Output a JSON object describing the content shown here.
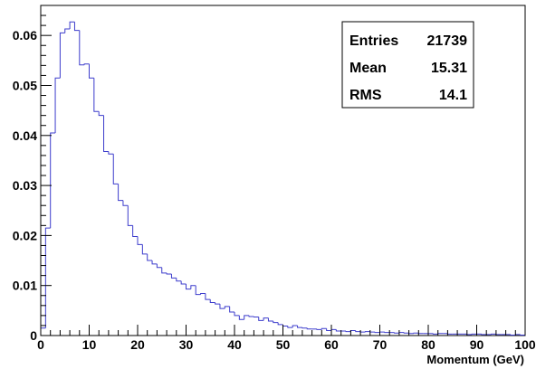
{
  "chart_data": {
    "type": "bar",
    "title": "",
    "xlabel": "Momentum (GeV)",
    "ylabel": "",
    "xlim": [
      0,
      100
    ],
    "ylim": [
      0,
      0.066
    ],
    "grid": false,
    "line_color": "#3c3ccc",
    "bin_width": 1,
    "x_ticks": [
      "0",
      "10",
      "20",
      "30",
      "40",
      "50",
      "60",
      "70",
      "80",
      "90",
      "100"
    ],
    "y_ticks": [
      "0",
      "0.01",
      "0.02",
      "0.03",
      "0.04",
      "0.05",
      "0.06"
    ],
    "y_tick_values": [
      0,
      0.01,
      0.02,
      0.03,
      0.04,
      0.05,
      0.06
    ],
    "values": [
      0.0015,
      0.0215,
      0.0405,
      0.0515,
      0.0605,
      0.0613,
      0.0627,
      0.061,
      0.0541,
      0.0543,
      0.0515,
      0.0448,
      0.044,
      0.0368,
      0.0363,
      0.0303,
      0.027,
      0.026,
      0.022,
      0.0198,
      0.0182,
      0.0163,
      0.015,
      0.0143,
      0.0136,
      0.0125,
      0.0123,
      0.0115,
      0.0109,
      0.0103,
      0.0093,
      0.01,
      0.0082,
      0.0084,
      0.0072,
      0.0066,
      0.0063,
      0.0054,
      0.0058,
      0.0047,
      0.004,
      0.0032,
      0.004,
      0.0038,
      0.0037,
      0.003,
      0.0035,
      0.0029,
      0.0026,
      0.0022,
      0.0019,
      0.0016,
      0.002,
      0.0016,
      0.0015,
      0.0013,
      0.0013,
      0.0012,
      0.0014,
      0.001,
      0.0012,
      0.0009,
      0.0009,
      0.0008,
      0.001,
      0.0008,
      0.0007,
      0.0008,
      0.0007,
      0.0006,
      0.0007,
      0.0006,
      0.0006,
      0.0005,
      0.0006,
      0.0005,
      0.0004,
      0.0005,
      0.0004,
      0.0004,
      0.0004,
      0.0003,
      0.0004,
      0.0004,
      0.0003,
      0.0003,
      0.0003,
      0.0003,
      0.0002,
      0.0003,
      0.0003,
      0.0002,
      0.0002,
      0.0003,
      0.0002,
      0.0002,
      0.0002,
      0.0001,
      0.0002,
      0.0001
    ],
    "stats": [
      {
        "label": "Entries",
        "value": "21739"
      },
      {
        "label": "Mean",
        "value": "15.31"
      },
      {
        "label": "RMS",
        "value": "14.1"
      }
    ],
    "legend_placement": "top-right"
  }
}
